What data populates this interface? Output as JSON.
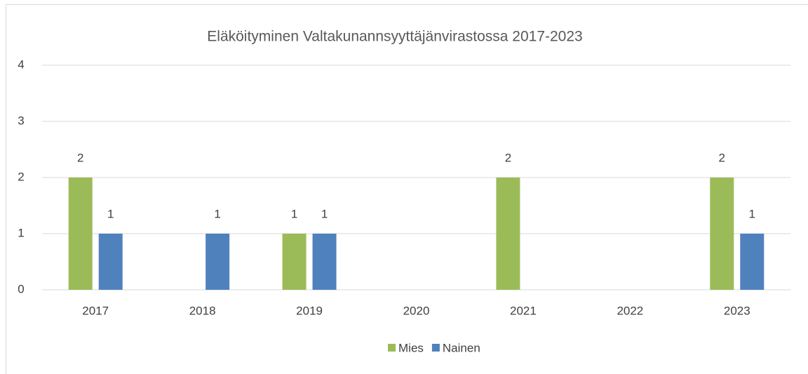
{
  "chart_data": {
    "type": "bar",
    "title": "Eläköityminen Valtakunannsyyttäjänvirastossa 2017-2023",
    "categories": [
      "2017",
      "2018",
      "2019",
      "2020",
      "2021",
      "2022",
      "2023"
    ],
    "series": [
      {
        "name": "Mies",
        "color": "#9bbb59",
        "values": [
          2,
          null,
          1,
          null,
          2,
          null,
          2
        ]
      },
      {
        "name": "Nainen",
        "color": "#4f81bd",
        "values": [
          1,
          1,
          1,
          null,
          null,
          null,
          1
        ]
      }
    ],
    "ylim": [
      0,
      4
    ],
    "yticks": [
      0,
      1,
      2,
      3,
      4
    ],
    "grid": true,
    "legend": "bottom"
  }
}
